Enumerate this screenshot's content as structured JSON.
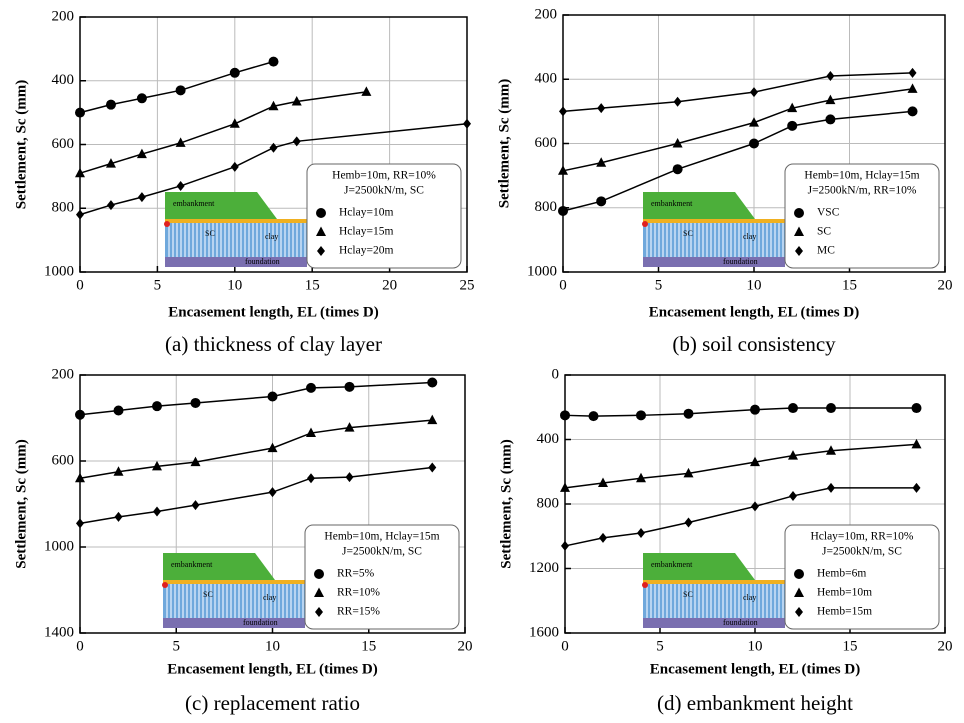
{
  "chart_data": [
    {
      "type": "line",
      "caption": "(a) thickness of clay layer",
      "x_label": "Encasement length, EL (times D)",
      "y_label": "Settlement, Sc (mm)",
      "xlim": [
        0,
        25
      ],
      "xticks": [
        0,
        5,
        10,
        15,
        20,
        25
      ],
      "ylim": [
        1000,
        200
      ],
      "yticks": [
        200,
        400,
        600,
        800,
        1000
      ],
      "grid": true,
      "legend": "lower right",
      "legend_title": [
        "Hemb=10m, RR=10%",
        "J=2500kN/m, SC"
      ],
      "inset": {
        "top": "embankment",
        "left": "SC",
        "right": "clay",
        "bottom": "foundation"
      },
      "series": [
        {
          "name": "Hclay=10m",
          "color": "#000000",
          "marker": "circle",
          "x": [
            0,
            2,
            4,
            6.5,
            10,
            12.5
          ],
          "values": [
            500,
            475,
            455,
            430,
            375,
            340
          ]
        },
        {
          "name": "Hclay=15m",
          "color": "#000000",
          "marker": "triangle",
          "x": [
            0,
            2,
            4,
            6.5,
            10,
            12.5,
            14,
            18.5
          ],
          "values": [
            690,
            660,
            630,
            595,
            535,
            480,
            465,
            435
          ]
        },
        {
          "name": "Hclay=20m",
          "color": "#000000",
          "marker": "diamond",
          "x": [
            0,
            2,
            4,
            6.5,
            10,
            12.5,
            14,
            25
          ],
          "values": [
            820,
            790,
            765,
            730,
            670,
            610,
            590,
            535
          ]
        }
      ]
    },
    {
      "type": "line",
      "caption": "(b) soil consistency",
      "x_label": "Encasement length, EL (times D)",
      "y_label": "Settlement, Sc (mm)",
      "xlim": [
        0,
        20
      ],
      "xticks": [
        0,
        5,
        10,
        15,
        20
      ],
      "ylim": [
        1000,
        200
      ],
      "yticks": [
        200,
        400,
        600,
        800,
        1000
      ],
      "grid": true,
      "legend": "lower right",
      "legend_title": [
        "Hemb=10m, Hclay=15m",
        "J=2500kN/m, RR=10%"
      ],
      "inset": {
        "top": "embankment",
        "left": "SC",
        "right": "clay",
        "bottom": "foundation"
      },
      "series": [
        {
          "name": "VSC",
          "color": "#000000",
          "marker": "circle",
          "x": [
            0,
            2,
            6,
            10,
            12,
            14,
            18.3
          ],
          "values": [
            810,
            780,
            680,
            600,
            545,
            525,
            500
          ]
        },
        {
          "name": "SC",
          "color": "#000000",
          "marker": "triangle",
          "x": [
            0,
            2,
            6,
            10,
            12,
            14,
            18.3
          ],
          "values": [
            685,
            660,
            600,
            535,
            490,
            465,
            430
          ]
        },
        {
          "name": "MC",
          "color": "#000000",
          "marker": "diamond",
          "x": [
            0,
            2,
            6,
            10,
            14,
            18.3
          ],
          "values": [
            500,
            490,
            470,
            440,
            390,
            380
          ]
        }
      ]
    },
    {
      "type": "line",
      "caption": "(c) replacement ratio",
      "x_label": "Encasement length, EL (times D)",
      "y_label": "Settlement, Sc (mm)",
      "xlim": [
        0,
        20
      ],
      "xticks": [
        0,
        5,
        10,
        15,
        20
      ],
      "ylim": [
        1400,
        200
      ],
      "yticks": [
        200,
        600,
        1000,
        1400
      ],
      "grid": true,
      "legend": "lower right",
      "legend_title": [
        "Hemb=10m, Hclay=15m",
        "J=2500kN/m, SC"
      ],
      "inset": {
        "top": "embankment",
        "left": "SC",
        "right": "clay",
        "bottom": "foundation"
      },
      "series": [
        {
          "name": "RR=5%",
          "color": "#000000",
          "marker": "circle",
          "x": [
            0,
            2,
            4,
            6,
            10,
            12,
            14,
            18.3
          ],
          "values": [
            385,
            365,
            345,
            330,
            300,
            260,
            255,
            235
          ]
        },
        {
          "name": "RR=10%",
          "color": "#000000",
          "marker": "triangle",
          "x": [
            0,
            2,
            4,
            6,
            10,
            12,
            14,
            18.3
          ],
          "values": [
            680,
            650,
            625,
            605,
            540,
            470,
            445,
            410
          ]
        },
        {
          "name": "RR=15%",
          "color": "#000000",
          "marker": "diamond",
          "x": [
            0,
            2,
            4,
            6,
            10,
            12,
            14,
            18.3
          ],
          "values": [
            890,
            860,
            835,
            805,
            745,
            680,
            675,
            630
          ]
        }
      ]
    },
    {
      "type": "line",
      "caption": "(d) embankment height",
      "x_label": "Encasement length, EL (times D)",
      "y_label": "Settlement, Sc (mm)",
      "xlim": [
        0,
        20
      ],
      "xticks": [
        0,
        5,
        10,
        15,
        20
      ],
      "ylim": [
        1600,
        0
      ],
      "yticks": [
        0,
        400,
        800,
        1200,
        1600
      ],
      "grid": true,
      "legend": "lower right",
      "legend_title": [
        "Hclay=10m, RR=10%",
        "J=2500kN/m, SC"
      ],
      "inset": {
        "top": "embankment",
        "left": "SC",
        "right": "clay",
        "bottom": "foundation"
      },
      "series": [
        {
          "name": "Hemb=6m",
          "color": "#000000",
          "marker": "circle",
          "x": [
            0,
            1.5,
            4,
            6.5,
            10,
            12,
            14,
            18.5
          ],
          "values": [
            250,
            255,
            250,
            240,
            215,
            205,
            205,
            205
          ]
        },
        {
          "name": "Hemb=10m",
          "color": "#000000",
          "marker": "triangle",
          "x": [
            0,
            2,
            4,
            6.5,
            10,
            12,
            14,
            18.5
          ],
          "values": [
            700,
            670,
            640,
            610,
            540,
            500,
            470,
            430
          ]
        },
        {
          "name": "Hemb=15m",
          "color": "#000000",
          "marker": "diamond",
          "x": [
            0,
            2,
            4,
            6.5,
            10,
            12,
            14,
            18.5
          ],
          "values": [
            1060,
            1010,
            980,
            915,
            815,
            750,
            700,
            700
          ]
        }
      ]
    }
  ]
}
